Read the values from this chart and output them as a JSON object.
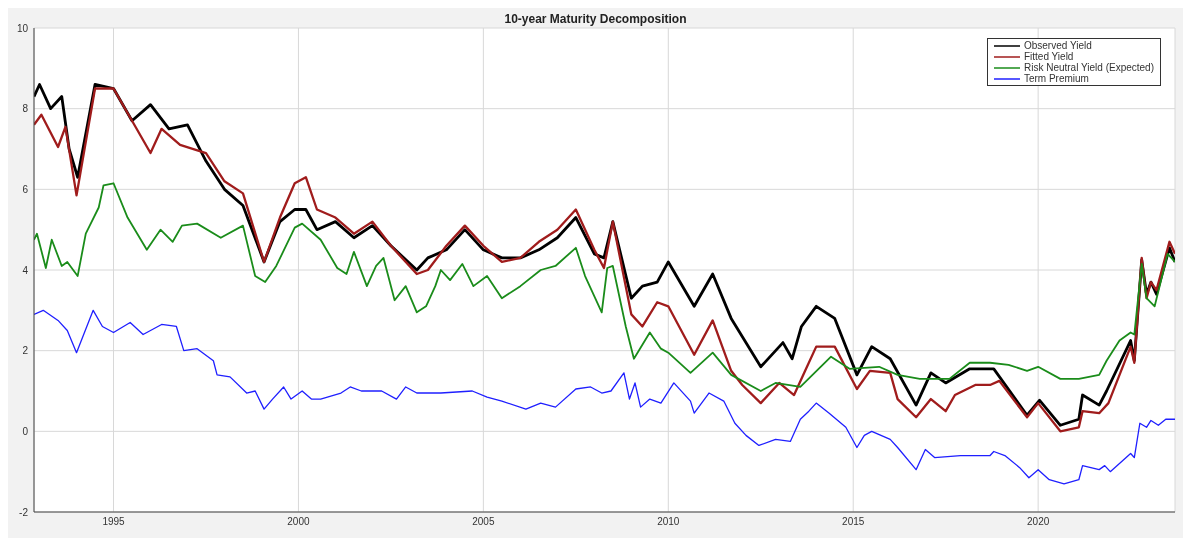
{
  "chart_data": {
    "type": "line",
    "title": "10-year Maturity Decomposition",
    "xlim": [
      1992.85,
      2023.7
    ],
    "xticks": [
      1995,
      2000,
      2005,
      2010,
      2015,
      2020
    ],
    "ylim": [
      -2,
      10
    ],
    "yticks": [
      -2,
      0,
      2,
      4,
      6,
      8,
      10
    ],
    "grid": true,
    "legend": "top right",
    "line_style": "solid",
    "marker": "none",
    "series": [
      {
        "name": "Observed Yield",
        "color": "#000000",
        "x": [
          1992.85,
          1993.0,
          1993.3,
          1993.6,
          1993.8,
          1994.03,
          1994.5,
          1995.0,
          1995.5,
          1996.0,
          1996.5,
          1997.0,
          1997.5,
          1998.0,
          1998.5,
          1999.07,
          1999.5,
          1999.9,
          2000.2,
          2000.5,
          2001.0,
          2001.5,
          2002.0,
          2002.5,
          2003.2,
          2003.5,
          2004.0,
          2004.5,
          2005.0,
          2005.5,
          2006.0,
          2006.5,
          2007.0,
          2007.5,
          2008.0,
          2008.26,
          2008.5,
          2009.0,
          2009.3,
          2009.7,
          2010.0,
          2010.7,
          2011.2,
          2011.7,
          2012.5,
          2013.1,
          2013.35,
          2013.6,
          2014.0,
          2014.5,
          2015.1,
          2015.5,
          2016.0,
          2016.7,
          2017.1,
          2017.5,
          2018.15,
          2018.8,
          2019.7,
          2020.04,
          2020.6,
          2021.1,
          2021.2,
          2021.65,
          2021.85,
          2022.5,
          2022.6,
          2022.8,
          2022.93,
          2023.05,
          2023.2,
          2023.55,
          2023.7
        ],
        "values": [
          8.3,
          8.6,
          8.0,
          8.3,
          7.0,
          6.3,
          8.6,
          8.5,
          7.7,
          8.1,
          7.5,
          7.6,
          6.7,
          6.0,
          5.6,
          4.2,
          5.2,
          5.5,
          5.5,
          5.0,
          5.2,
          4.8,
          5.1,
          4.6,
          4.0,
          4.3,
          4.5,
          5.0,
          4.5,
          4.3,
          4.3,
          4.5,
          4.8,
          5.3,
          4.4,
          4.3,
          5.2,
          3.3,
          3.6,
          3.7,
          4.2,
          3.1,
          3.9,
          2.8,
          1.6,
          2.2,
          1.8,
          2.6,
          3.1,
          2.8,
          1.4,
          2.1,
          1.8,
          0.65,
          1.45,
          1.2,
          1.55,
          1.55,
          0.4,
          0.77,
          0.15,
          0.3,
          0.9,
          0.65,
          1.0,
          2.25,
          1.75,
          4.25,
          3.4,
          3.7,
          3.4,
          4.55,
          4.2
        ]
      },
      {
        "name": "Fitted Yield",
        "color": "#a01c1c",
        "x": [
          1992.85,
          1993.05,
          1993.5,
          1993.7,
          1994.0,
          1994.5,
          1995.0,
          1995.5,
          1996.0,
          1996.3,
          1996.8,
          1997.5,
          1998.0,
          1998.5,
          1999.07,
          1999.5,
          1999.9,
          2000.2,
          2000.5,
          2001.0,
          2001.5,
          2002.0,
          2002.5,
          2003.2,
          2003.5,
          2004.0,
          2004.5,
          2005.0,
          2005.5,
          2006.0,
          2006.5,
          2007.0,
          2007.5,
          2008.0,
          2008.26,
          2008.5,
          2009.0,
          2009.3,
          2009.7,
          2010.0,
          2010.7,
          2011.2,
          2011.7,
          2012.0,
          2012.5,
          2013.0,
          2013.4,
          2013.7,
          2014.0,
          2014.5,
          2015.1,
          2015.45,
          2016.0,
          2016.2,
          2016.7,
          2017.1,
          2017.5,
          2017.75,
          2018.3,
          2018.7,
          2018.95,
          2019.7,
          2020.0,
          2020.6,
          2021.1,
          2021.2,
          2021.65,
          2021.9,
          2022.5,
          2022.6,
          2022.8,
          2022.93,
          2023.05,
          2023.2,
          2023.55,
          2023.7
        ],
        "values": [
          7.6,
          7.85,
          7.05,
          7.55,
          5.85,
          8.5,
          8.5,
          7.7,
          6.9,
          7.5,
          7.1,
          6.9,
          6.2,
          5.9,
          4.2,
          5.3,
          6.15,
          6.3,
          5.5,
          5.3,
          4.9,
          5.2,
          4.6,
          3.9,
          4.0,
          4.6,
          5.1,
          4.6,
          4.2,
          4.3,
          4.7,
          5.0,
          5.5,
          4.5,
          4.05,
          5.2,
          2.9,
          2.6,
          3.2,
          3.1,
          1.9,
          2.75,
          1.5,
          1.15,
          0.7,
          1.2,
          0.9,
          1.5,
          2.1,
          2.1,
          1.05,
          1.5,
          1.45,
          0.8,
          0.35,
          0.8,
          0.5,
          0.9,
          1.15,
          1.15,
          1.25,
          0.35,
          0.7,
          0.0,
          0.1,
          0.5,
          0.45,
          0.7,
          2.1,
          1.7,
          4.3,
          3.3,
          3.7,
          3.5,
          4.7,
          4.4
        ]
      },
      {
        "name": "Risk Neutral Yield (Expected)",
        "color": "#1a8c1a",
        "x": [
          1992.85,
          1992.93,
          1993.17,
          1993.33,
          1993.6,
          1993.75,
          1994.03,
          1994.25,
          1994.6,
          1994.73,
          1995.0,
          1995.38,
          1995.9,
          1996.27,
          1996.6,
          1996.85,
          1997.26,
          1997.9,
          1998.5,
          1998.83,
          1999.1,
          1999.4,
          1999.9,
          2000.1,
          2000.6,
          2001.05,
          2001.3,
          2001.5,
          2001.85,
          2002.1,
          2002.3,
          2002.6,
          2002.9,
          2003.2,
          2003.45,
          2003.7,
          2003.85,
          2004.1,
          2004.43,
          2004.73,
          2005.1,
          2005.5,
          2006.0,
          2006.55,
          2006.95,
          2007.5,
          2007.75,
          2008.2,
          2008.35,
          2008.5,
          2008.85,
          2009.07,
          2009.5,
          2009.8,
          2010.0,
          2010.6,
          2011.2,
          2011.7,
          2012.5,
          2012.9,
          2013.57,
          2014.4,
          2014.9,
          2015.7,
          2016.2,
          2016.8,
          2017.6,
          2018.15,
          2018.7,
          2019.2,
          2019.7,
          2020.0,
          2020.6,
          2021.1,
          2021.65,
          2021.85,
          2022.2,
          2022.5,
          2022.6,
          2022.8,
          2022.93,
          2023.15,
          2023.5,
          2023.7
        ],
        "values": [
          4.75,
          4.9,
          4.05,
          4.75,
          4.1,
          4.2,
          3.85,
          4.9,
          5.55,
          6.1,
          6.15,
          5.3,
          4.5,
          5.0,
          4.7,
          5.1,
          5.15,
          4.8,
          5.1,
          3.85,
          3.7,
          4.1,
          5.05,
          5.15,
          4.75,
          4.05,
          3.9,
          4.45,
          3.6,
          4.1,
          4.3,
          3.25,
          3.6,
          2.95,
          3.1,
          3.6,
          4.0,
          3.75,
          4.15,
          3.6,
          3.85,
          3.3,
          3.6,
          4.0,
          4.1,
          4.55,
          3.85,
          2.95,
          4.05,
          4.1,
          2.6,
          1.8,
          2.45,
          2.05,
          1.95,
          1.45,
          1.95,
          1.4,
          1.0,
          1.2,
          1.1,
          1.85,
          1.55,
          1.6,
          1.4,
          1.3,
          1.3,
          1.7,
          1.7,
          1.65,
          1.5,
          1.6,
          1.3,
          1.3,
          1.4,
          1.75,
          2.25,
          2.45,
          2.4,
          4.15,
          3.3,
          3.1,
          4.4,
          4.2
        ]
      },
      {
        "name": "Term Premium",
        "color": "#1f1fff",
        "x": [
          1992.85,
          1993.1,
          1993.5,
          1993.75,
          1994.0,
          1994.45,
          1994.7,
          1995.0,
          1995.45,
          1995.8,
          1996.3,
          1996.7,
          1996.9,
          1997.26,
          1997.7,
          1997.8,
          1998.15,
          1998.6,
          1998.83,
          1999.07,
          1999.3,
          1999.6,
          1999.8,
          2000.1,
          2000.35,
          2000.6,
          2001.15,
          2001.4,
          2001.7,
          2002.25,
          2002.65,
          2002.9,
          2003.2,
          2003.85,
          2004.7,
          2005.1,
          2005.5,
          2006.15,
          2006.55,
          2006.95,
          2007.5,
          2007.9,
          2008.2,
          2008.45,
          2008.8,
          2008.95,
          2009.1,
          2009.25,
          2009.5,
          2009.8,
          2010.15,
          2010.6,
          2010.7,
          2011.1,
          2011.5,
          2011.8,
          2012.1,
          2012.45,
          2012.9,
          2013.3,
          2013.57,
          2013.8,
          2014.0,
          2014.35,
          2014.8,
          2015.1,
          2015.3,
          2015.5,
          2016.0,
          2016.2,
          2016.7,
          2016.95,
          2017.2,
          2017.9,
          2018.7,
          2018.8,
          2019.1,
          2019.5,
          2019.75,
          2020.0,
          2020.3,
          2020.7,
          2021.1,
          2021.2,
          2021.65,
          2021.8,
          2021.95,
          2022.5,
          2022.6,
          2022.75,
          2022.93,
          2023.05,
          2023.25,
          2023.45,
          2023.7
        ],
        "values": [
          2.9,
          3.0,
          2.75,
          2.5,
          1.95,
          3.0,
          2.6,
          2.45,
          2.7,
          2.4,
          2.65,
          2.6,
          2.0,
          2.05,
          1.75,
          1.4,
          1.35,
          0.95,
          1.0,
          0.55,
          0.8,
          1.1,
          0.8,
          1.0,
          0.8,
          0.8,
          0.95,
          1.1,
          1.0,
          1.0,
          0.8,
          1.1,
          0.95,
          0.95,
          1.0,
          0.85,
          0.75,
          0.55,
          0.7,
          0.6,
          1.05,
          1.1,
          0.95,
          1.0,
          1.45,
          0.8,
          1.2,
          0.6,
          0.8,
          0.7,
          1.2,
          0.75,
          0.45,
          0.95,
          0.75,
          0.2,
          -0.1,
          -0.35,
          -0.2,
          -0.25,
          0.3,
          0.5,
          0.7,
          0.45,
          0.1,
          -0.4,
          -0.1,
          0.0,
          -0.2,
          -0.4,
          -0.95,
          -0.45,
          -0.65,
          -0.6,
          -0.6,
          -0.5,
          -0.6,
          -0.9,
          -1.15,
          -0.95,
          -1.2,
          -1.3,
          -1.2,
          -0.85,
          -0.95,
          -0.85,
          -1.0,
          -0.55,
          -0.65,
          0.2,
          0.1,
          0.27,
          0.15,
          0.3,
          0.3
        ]
      }
    ]
  }
}
